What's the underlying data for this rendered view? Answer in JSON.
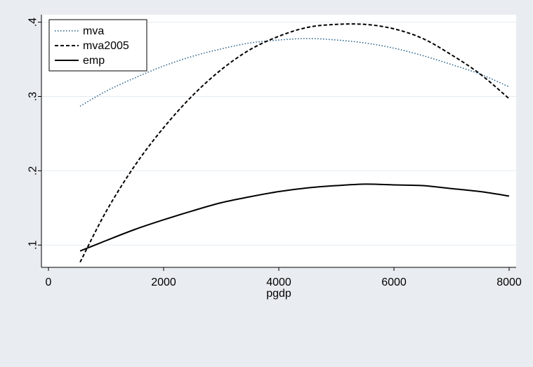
{
  "chart_data": {
    "type": "line",
    "xlabel": "pgdp",
    "ylabel": "",
    "xlim": [
      0,
      8000
    ],
    "ylim": [
      0.07,
      0.41
    ],
    "x_ticks": [
      0,
      2000,
      4000,
      6000,
      8000
    ],
    "x_tick_labels": [
      "0",
      "2000",
      "4000",
      "6000",
      "8000"
    ],
    "y_ticks": [
      0.1,
      0.2,
      0.3,
      0.4
    ],
    "y_tick_labels": [
      ".1",
      ".2",
      ".3",
      ".4"
    ],
    "grid": "horizontal",
    "legend_position": "top-left",
    "x": [
      550,
      1000,
      1500,
      2000,
      2500,
      3000,
      3500,
      4000,
      4500,
      5000,
      5500,
      6000,
      6500,
      7000,
      7500,
      8000
    ],
    "series": [
      {
        "name": "mva",
        "style": "dotted",
        "color": "#1f5c87",
        "values": [
          0.287,
          0.307,
          0.325,
          0.341,
          0.354,
          0.364,
          0.372,
          0.376,
          0.378,
          0.376,
          0.372,
          0.365,
          0.355,
          0.343,
          0.33,
          0.313
        ]
      },
      {
        "name": "mva2005",
        "style": "dashed",
        "color": "#000000",
        "values": [
          0.077,
          0.145,
          0.207,
          0.258,
          0.301,
          0.336,
          0.363,
          0.381,
          0.393,
          0.397,
          0.397,
          0.391,
          0.378,
          0.356,
          0.33,
          0.297
        ]
      },
      {
        "name": "emp",
        "style": "solid",
        "color": "#000000",
        "values": [
          0.092,
          0.106,
          0.121,
          0.134,
          0.146,
          0.157,
          0.165,
          0.172,
          0.177,
          0.18,
          0.182,
          0.181,
          0.18,
          0.176,
          0.172,
          0.166
        ]
      }
    ]
  },
  "colors": {
    "outer_background": "#e9edf1",
    "plot_background": "#ffffff",
    "gridline": "#e4ebf1",
    "axis": "#000000"
  }
}
